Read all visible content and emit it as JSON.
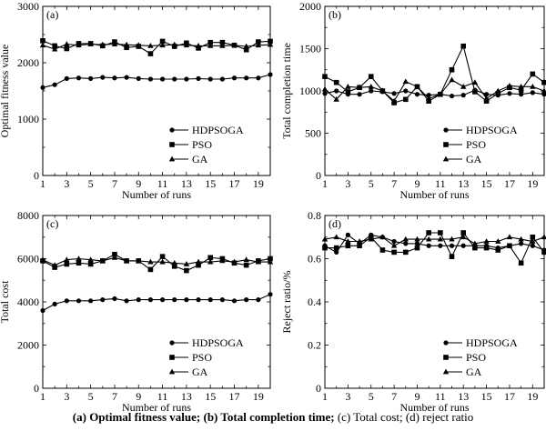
{
  "caption": {
    "part1": "(a) Optimal fitness value; (b) Total completion time;",
    "part2": " (c) Total cost; (d) reject ratio"
  },
  "chart_data": [
    {
      "type": "line",
      "panel_label": "(a)",
      "xlabel": "Number of runs",
      "ylabel": "Optimal fitness value",
      "x": [
        1,
        2,
        3,
        4,
        5,
        6,
        7,
        8,
        9,
        10,
        11,
        12,
        13,
        14,
        15,
        16,
        17,
        18,
        19,
        20
      ],
      "xticks": [
        1,
        3,
        5,
        7,
        9,
        11,
        13,
        15,
        17,
        19
      ],
      "xlim": [
        1,
        20
      ],
      "ylim": [
        0,
        3000
      ],
      "yticks": [
        0,
        1000,
        2000,
        3000
      ],
      "legend": "bottom-right",
      "grid": false,
      "series": [
        {
          "name": "HDPSOGA",
          "marker": "circle",
          "values": [
            1560,
            1610,
            1720,
            1730,
            1720,
            1740,
            1730,
            1740,
            1720,
            1710,
            1710,
            1710,
            1710,
            1720,
            1710,
            1710,
            1730,
            1730,
            1730,
            1790
          ]
        },
        {
          "name": "PSO",
          "marker": "square",
          "values": [
            2390,
            2300,
            2250,
            2340,
            2340,
            2300,
            2370,
            2270,
            2290,
            2160,
            2380,
            2290,
            2350,
            2260,
            2360,
            2360,
            2310,
            2230,
            2370,
            2380
          ]
        },
        {
          "name": "GA",
          "marker": "triangle",
          "values": [
            2310,
            2240,
            2330,
            2310,
            2330,
            2320,
            2330,
            2320,
            2310,
            2300,
            2310,
            2320,
            2310,
            2300,
            2300,
            2300,
            2310,
            2290,
            2310,
            2320
          ]
        }
      ]
    },
    {
      "type": "line",
      "panel_label": "(b)",
      "xlabel": "Number of runs",
      "ylabel": "Total completion time",
      "x": [
        1,
        2,
        3,
        4,
        5,
        6,
        7,
        8,
        9,
        10,
        11,
        12,
        13,
        14,
        15,
        16,
        17,
        18,
        19,
        20
      ],
      "xticks": [
        1,
        3,
        5,
        7,
        9,
        11,
        13,
        15,
        17,
        19
      ],
      "xlim": [
        1,
        20
      ],
      "ylim": [
        0,
        2000
      ],
      "yticks": [
        0,
        500,
        1000,
        1500,
        2000
      ],
      "legend": "bottom-right",
      "grid": false,
      "series": [
        {
          "name": "HDPSOGA",
          "marker": "circle",
          "values": [
            970,
            1000,
            960,
            960,
            1000,
            990,
            970,
            1000,
            960,
            950,
            960,
            940,
            950,
            1010,
            960,
            950,
            970,
            960,
            980,
            960
          ]
        },
        {
          "name": "PSO",
          "marker": "square",
          "values": [
            1170,
            1100,
            990,
            1040,
            1170,
            1000,
            860,
            900,
            1050,
            880,
            960,
            1250,
            1530,
            990,
            880,
            970,
            1040,
            1010,
            1200,
            1100
          ]
        },
        {
          "name": "GA",
          "marker": "triangle",
          "values": [
            1020,
            900,
            1050,
            1040,
            1050,
            1000,
            880,
            1110,
            1050,
            910,
            960,
            1130,
            1050,
            1100,
            910,
            1000,
            1060,
            1050,
            1050,
            1000
          ]
        }
      ]
    },
    {
      "type": "line",
      "panel_label": "(c)",
      "xlabel": "Number of runs",
      "ylabel": "Total cost",
      "x": [
        1,
        2,
        3,
        4,
        5,
        6,
        7,
        8,
        9,
        10,
        11,
        12,
        13,
        14,
        15,
        16,
        17,
        18,
        19,
        20
      ],
      "xticks": [
        1,
        3,
        5,
        7,
        9,
        11,
        13,
        15,
        17,
        19
      ],
      "xlim": [
        1,
        20
      ],
      "ylim": [
        0,
        8000
      ],
      "yticks": [
        0,
        2000,
        4000,
        6000,
        8000
      ],
      "legend": "bottom-right",
      "grid": false,
      "series": [
        {
          "name": "HDPSOGA",
          "marker": "circle",
          "values": [
            3600,
            3900,
            4050,
            4050,
            4050,
            4100,
            4150,
            4050,
            4100,
            4100,
            4100,
            4100,
            4100,
            4100,
            4100,
            4100,
            4050,
            4100,
            4100,
            4350
          ]
        },
        {
          "name": "PSO",
          "marker": "square",
          "values": [
            5900,
            5600,
            5750,
            5800,
            5750,
            5900,
            6200,
            5900,
            5900,
            5500,
            6100,
            5650,
            5450,
            5700,
            6050,
            6000,
            5800,
            5700,
            5900,
            6000
          ]
        },
        {
          "name": "GA",
          "marker": "triangle",
          "values": [
            5950,
            5700,
            5950,
            6000,
            5950,
            5900,
            6050,
            5900,
            5900,
            5850,
            5850,
            5800,
            5750,
            5850,
            5850,
            5900,
            5850,
            5950,
            5850,
            5850
          ]
        }
      ]
    },
    {
      "type": "line",
      "panel_label": "(d)",
      "xlabel": "Number of runs",
      "ylabel": "Reject ratio/%",
      "x": [
        1,
        2,
        3,
        4,
        5,
        6,
        7,
        8,
        9,
        10,
        11,
        12,
        13,
        14,
        15,
        16,
        17,
        18,
        19,
        20
      ],
      "xticks": [
        1,
        3,
        5,
        7,
        9,
        11,
        13,
        15,
        17,
        19
      ],
      "xlim": [
        1,
        20
      ],
      "ylim": [
        0,
        0.8
      ],
      "yticks": [
        0,
        0.2,
        0.4,
        0.6,
        0.8
      ],
      "legend": "bottom-right",
      "grid": false,
      "series": [
        {
          "name": "HDPSOGA",
          "marker": "circle",
          "values": [
            0.66,
            0.63,
            0.71,
            0.67,
            0.71,
            0.7,
            0.68,
            0.67,
            0.67,
            0.66,
            0.66,
            0.66,
            0.66,
            0.66,
            0.66,
            0.65,
            0.66,
            0.67,
            0.66,
            0.64
          ]
        },
        {
          "name": "PSO",
          "marker": "square",
          "values": [
            0.65,
            0.65,
            0.66,
            0.66,
            0.7,
            0.64,
            0.63,
            0.63,
            0.65,
            0.72,
            0.72,
            0.61,
            0.72,
            0.65,
            0.65,
            0.64,
            0.66,
            0.58,
            0.7,
            0.63
          ]
        },
        {
          "name": "GA",
          "marker": "triangle",
          "values": [
            0.69,
            0.7,
            0.68,
            0.68,
            0.69,
            0.7,
            0.66,
            0.69,
            0.69,
            0.69,
            0.69,
            0.69,
            0.7,
            0.67,
            0.68,
            0.68,
            0.7,
            0.69,
            0.68,
            0.7
          ]
        }
      ]
    }
  ]
}
